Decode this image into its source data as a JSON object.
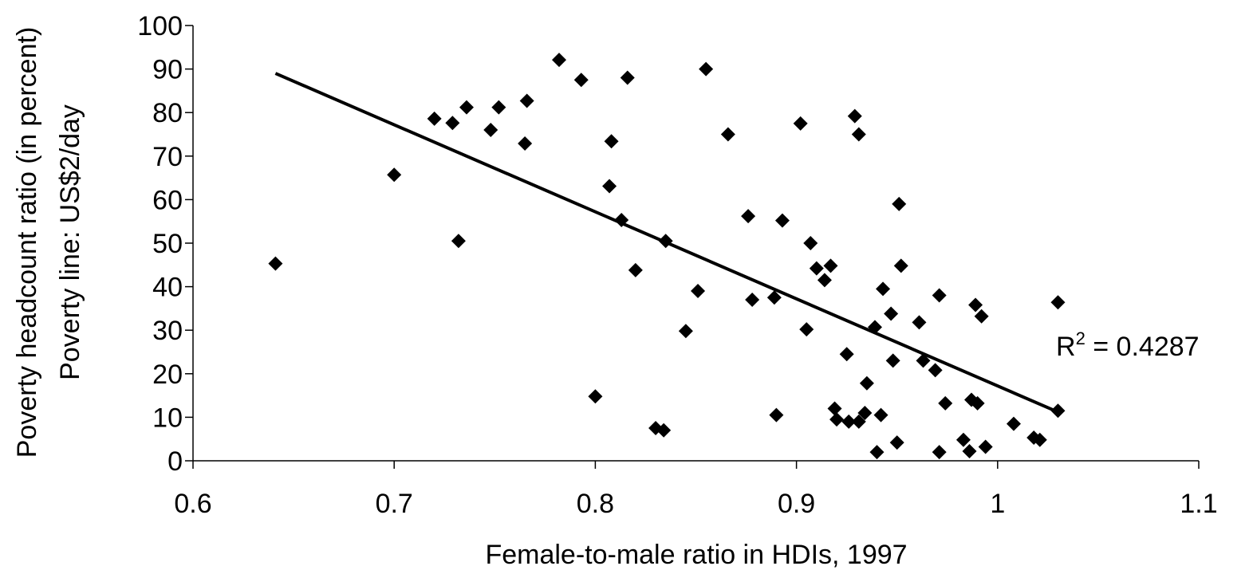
{
  "chart_data": {
    "type": "scatter",
    "title": "",
    "xlabel": "Female-to-male ratio in HDIs, 1997",
    "ylabel_lines": [
      "Poverty headcount ratio (in percent)",
      "Poverty line: US$2/day"
    ],
    "xlim": [
      0.6,
      1.1
    ],
    "ylim": [
      0,
      100
    ],
    "x_ticks": [
      "0.6",
      "0.7",
      "0.8",
      "0.9",
      "1",
      "1.1"
    ],
    "y_ticks": [
      "0",
      "10",
      "20",
      "30",
      "40",
      "50",
      "60",
      "70",
      "80",
      "90",
      "100"
    ],
    "grid": false,
    "legend": "none",
    "marker": "diamond",
    "marker_color": "#000000",
    "points": [
      {
        "x": 0.641,
        "y": 45.3
      },
      {
        "x": 0.7,
        "y": 65.7
      },
      {
        "x": 0.72,
        "y": 78.6
      },
      {
        "x": 0.729,
        "y": 77.6
      },
      {
        "x": 0.732,
        "y": 50.5
      },
      {
        "x": 0.736,
        "y": 81.2
      },
      {
        "x": 0.748,
        "y": 76.0
      },
      {
        "x": 0.752,
        "y": 81.2
      },
      {
        "x": 0.765,
        "y": 72.9
      },
      {
        "x": 0.766,
        "y": 82.7
      },
      {
        "x": 0.782,
        "y": 92.1
      },
      {
        "x": 0.793,
        "y": 87.5
      },
      {
        "x": 0.8,
        "y": 14.8
      },
      {
        "x": 0.807,
        "y": 63.1
      },
      {
        "x": 0.808,
        "y": 73.4
      },
      {
        "x": 0.813,
        "y": 55.3
      },
      {
        "x": 0.816,
        "y": 88.0
      },
      {
        "x": 0.82,
        "y": 43.8
      },
      {
        "x": 0.83,
        "y": 7.5
      },
      {
        "x": 0.834,
        "y": 7.0
      },
      {
        "x": 0.835,
        "y": 50.5
      },
      {
        "x": 0.845,
        "y": 29.8
      },
      {
        "x": 0.851,
        "y": 39.0
      },
      {
        "x": 0.855,
        "y": 90.0
      },
      {
        "x": 0.866,
        "y": 75.0
      },
      {
        "x": 0.876,
        "y": 56.2
      },
      {
        "x": 0.878,
        "y": 37.0
      },
      {
        "x": 0.889,
        "y": 37.5
      },
      {
        "x": 0.89,
        "y": 10.5
      },
      {
        "x": 0.893,
        "y": 55.2
      },
      {
        "x": 0.902,
        "y": 77.5
      },
      {
        "x": 0.905,
        "y": 30.2
      },
      {
        "x": 0.907,
        "y": 50.0
      },
      {
        "x": 0.91,
        "y": 44.2
      },
      {
        "x": 0.914,
        "y": 41.5
      },
      {
        "x": 0.917,
        "y": 44.8
      },
      {
        "x": 0.919,
        "y": 12.0
      },
      {
        "x": 0.92,
        "y": 9.5
      },
      {
        "x": 0.925,
        "y": 24.5
      },
      {
        "x": 0.926,
        "y": 9.0
      },
      {
        "x": 0.929,
        "y": 79.2
      },
      {
        "x": 0.931,
        "y": 75.0
      },
      {
        "x": 0.931,
        "y": 9.0
      },
      {
        "x": 0.934,
        "y": 11.0
      },
      {
        "x": 0.935,
        "y": 17.8
      },
      {
        "x": 0.939,
        "y": 30.7
      },
      {
        "x": 0.94,
        "y": 2.0
      },
      {
        "x": 0.942,
        "y": 10.5
      },
      {
        "x": 0.943,
        "y": 39.5
      },
      {
        "x": 0.947,
        "y": 33.8
      },
      {
        "x": 0.948,
        "y": 23.0
      },
      {
        "x": 0.95,
        "y": 4.2
      },
      {
        "x": 0.951,
        "y": 59.0
      },
      {
        "x": 0.952,
        "y": 44.8
      },
      {
        "x": 0.961,
        "y": 31.8
      },
      {
        "x": 0.963,
        "y": 23.0
      },
      {
        "x": 0.969,
        "y": 20.8
      },
      {
        "x": 0.971,
        "y": 38.0
      },
      {
        "x": 0.971,
        "y": 2.0
      },
      {
        "x": 0.974,
        "y": 13.2
      },
      {
        "x": 0.983,
        "y": 4.8
      },
      {
        "x": 0.986,
        "y": 2.2
      },
      {
        "x": 0.987,
        "y": 14.0
      },
      {
        "x": 0.989,
        "y": 35.8
      },
      {
        "x": 0.99,
        "y": 13.2
      },
      {
        "x": 0.992,
        "y": 33.2
      },
      {
        "x": 0.994,
        "y": 3.2
      },
      {
        "x": 1.008,
        "y": 8.5
      },
      {
        "x": 1.018,
        "y": 5.3
      },
      {
        "x": 1.021,
        "y": 4.8
      },
      {
        "x": 1.03,
        "y": 11.5
      },
      {
        "x": 1.03,
        "y": 36.4
      }
    ],
    "trendline": {
      "x": [
        0.641,
        1.03
      ],
      "y": [
        89.0,
        11.2
      ]
    },
    "annotation": {
      "text": "R",
      "superscript": "2",
      "value": " = 0.4287"
    }
  }
}
